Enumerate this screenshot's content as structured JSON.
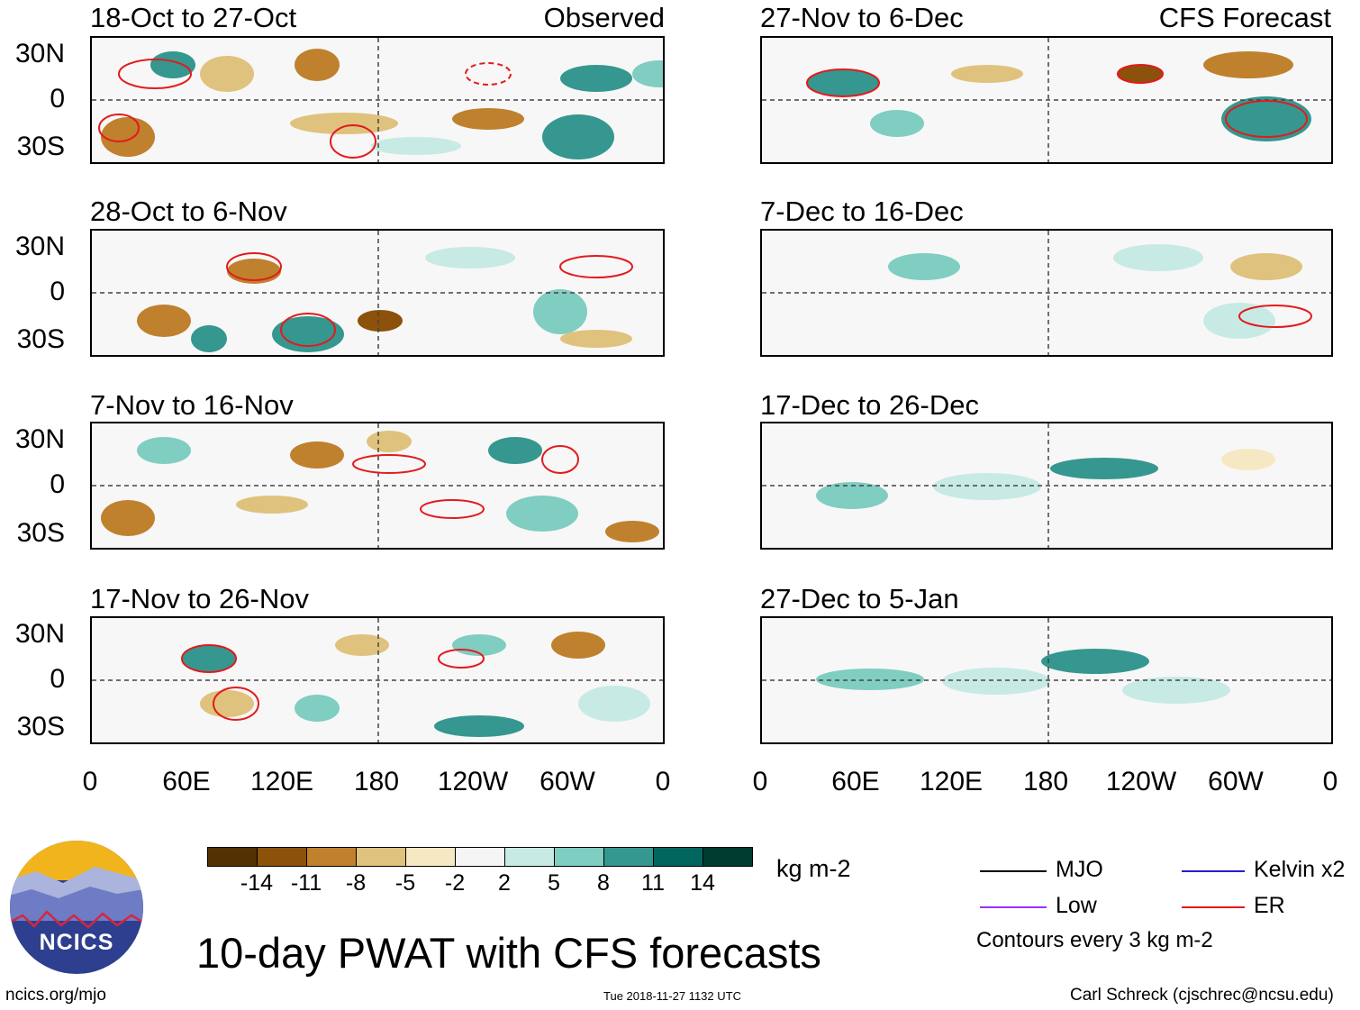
{
  "header": {
    "observed_label": "Observed",
    "forecast_label": "CFS Forecast"
  },
  "panels": {
    "left": [
      {
        "title": "18-Oct to 27-Oct"
      },
      {
        "title": "28-Oct to 6-Nov"
      },
      {
        "title": "7-Nov to 16-Nov"
      },
      {
        "title": "17-Nov to 26-Nov"
      }
    ],
    "right": [
      {
        "title": "27-Nov to 6-Dec"
      },
      {
        "title": "7-Dec to 16-Dec"
      },
      {
        "title": "17-Dec to 26-Dec"
      },
      {
        "title": "27-Dec to 5-Jan"
      }
    ]
  },
  "axes": {
    "lat_labels": [
      "30N",
      "0",
      "30S"
    ],
    "lon_labels": [
      "0",
      "60E",
      "120E",
      "180",
      "120W",
      "60W",
      "0"
    ]
  },
  "colorbar": {
    "unit": "kg m-2",
    "labels": [
      "-14",
      "-11",
      "-8",
      "-5",
      "-2",
      "2",
      "5",
      "8",
      "11",
      "14"
    ],
    "colors": [
      "#543005",
      "#8c510a",
      "#bf812d",
      "#dfc27d",
      "#f6e8c3",
      "#f5f5f5",
      "#c7eae5",
      "#80cdc1",
      "#35978f",
      "#01665e",
      "#003c30"
    ]
  },
  "legend": {
    "items": [
      {
        "label": "MJO",
        "color": "#000000"
      },
      {
        "label": "Kelvin x2",
        "color": "#1f1fd6"
      },
      {
        "label": "Low",
        "color": "#9b30ff"
      },
      {
        "label": "ER",
        "color": "#e31a1c"
      }
    ],
    "note": "Contours every 3 kg m-2"
  },
  "logo": {
    "text": "NCICS"
  },
  "footer": {
    "title": "10-day PWAT with CFS forecasts",
    "website": "ncics.org/mjo",
    "timestamp": "Tue 2018-11-27 1132 UTC",
    "author": "Carl Schreck (cjschrec@ncsu.edu)"
  }
}
